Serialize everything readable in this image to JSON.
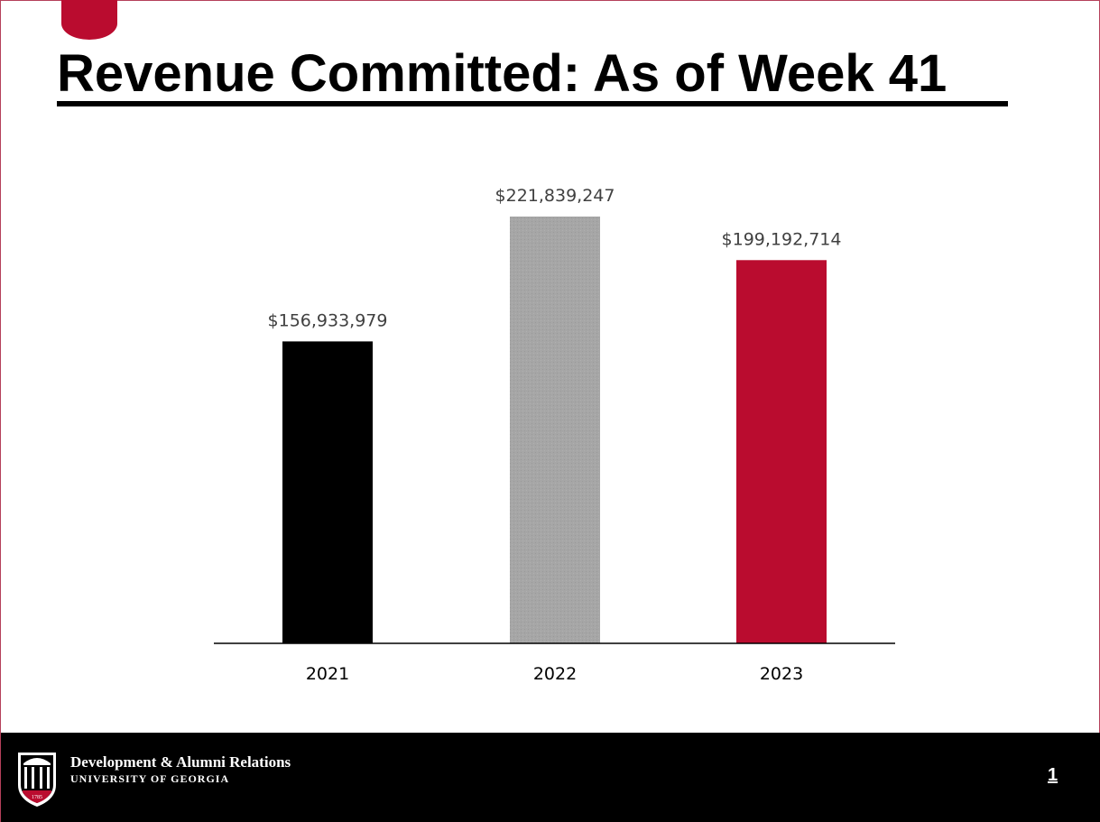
{
  "slide": {
    "title": "Revenue Committed: As of Week 41",
    "page_number": "1"
  },
  "footer": {
    "org_name": "Development & Alumni Relations",
    "university": "UNIVERSITY OF GEORGIA",
    "seal_year": "1785",
    "logo_icon": "arch-logo-icon"
  },
  "colors": {
    "accent": "#ba0c2f",
    "bar_2021": "#000000",
    "bar_2022": "#a6a6a6",
    "bar_2023": "#ba0c2f"
  },
  "chart_data": {
    "type": "bar",
    "categories": [
      "2021",
      "2022",
      "2023"
    ],
    "values": [
      156933979,
      221839247,
      199192714
    ],
    "data_labels": [
      "$156,933,979",
      "$221,839,247",
      "$199,192,714"
    ],
    "colors": [
      "#000000",
      "#a6a6a6",
      "#ba0c2f"
    ],
    "title": "",
    "xlabel": "",
    "ylabel": "",
    "ylim": [
      0,
      250000000
    ],
    "grid": false,
    "legend": "none"
  }
}
